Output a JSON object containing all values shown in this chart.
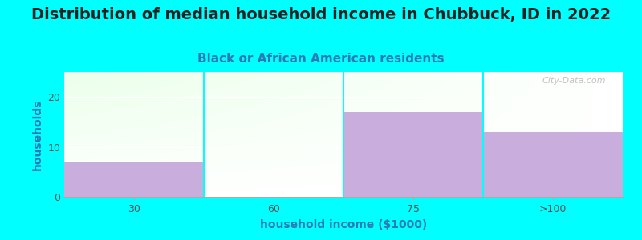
{
  "title": "Distribution of median household income in Chubbuck, ID in 2022",
  "subtitle": "Black or African American residents",
  "xlabel": "household income ($1000)",
  "ylabel": "households",
  "categories": [
    "30",
    "60",
    "75",
    ">100"
  ],
  "values": [
    7,
    0,
    17,
    13
  ],
  "bar_color": "#c9aedd",
  "background_color": "#00FFFF",
  "ylim": [
    0,
    25
  ],
  "yticks": [
    0,
    10,
    20
  ],
  "title_fontsize": 14,
  "subtitle_fontsize": 11,
  "axis_label_fontsize": 10,
  "tick_fontsize": 9,
  "title_color": "#222222",
  "subtitle_color": "#2a7ab5",
  "axis_label_color": "#2a7ab5",
  "tick_color": "#555555",
  "watermark": "City-Data.com"
}
